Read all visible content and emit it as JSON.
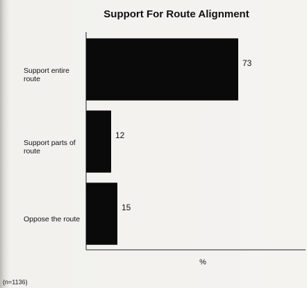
{
  "chart_data": {
    "type": "barh",
    "title": "Support For Route Alignment",
    "categories": [
      "Support entire route",
      "Support parts of route",
      "Oppose the route"
    ],
    "values": [
      73,
      12,
      15
    ],
    "color": "#0a0a0a",
    "xlim": [
      0,
      100
    ],
    "xlabel": "%",
    "note": "(n=1136)"
  }
}
